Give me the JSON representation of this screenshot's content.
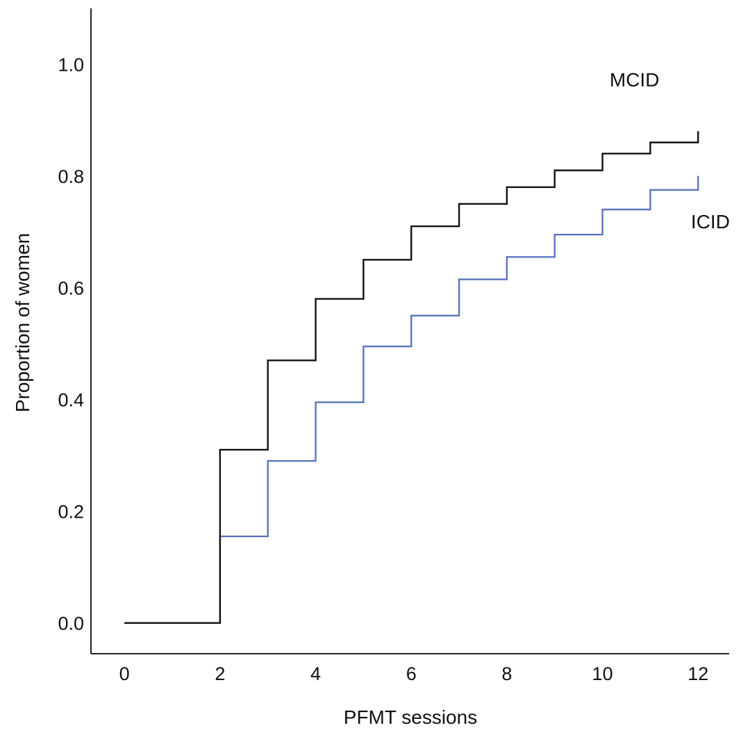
{
  "chart_data": {
    "type": "line",
    "step": true,
    "xlabel": "PFMT sessions",
    "ylabel": "Proportion of women",
    "xlim": [
      -0.7,
      12.65
    ],
    "ylim": [
      -0.055,
      1.1
    ],
    "x_ticks": [
      0,
      2,
      4,
      6,
      8,
      10,
      12
    ],
    "y_ticks": [
      0.0,
      0.2,
      0.4,
      0.6,
      0.8,
      1.0
    ],
    "x_tick_labels": [
      "0",
      "2",
      "4",
      "6",
      "8",
      "10",
      "12"
    ],
    "y_tick_labels": [
      "0.0",
      "0.2",
      "0.4",
      "0.6",
      "0.8",
      "1.0"
    ],
    "grid": false,
    "series": [
      {
        "name": "MCID",
        "color": "#111111",
        "x": [
          0,
          1,
          2,
          3,
          4,
          5,
          6,
          7,
          8,
          9,
          10,
          11,
          12
        ],
        "y": [
          0.0,
          0.0,
          0.31,
          0.47,
          0.58,
          0.65,
          0.71,
          0.75,
          0.78,
          0.81,
          0.84,
          0.86,
          0.88
        ]
      },
      {
        "name": "ICID",
        "color": "#5a75bd",
        "x": [
          0,
          1,
          2,
          3,
          4,
          5,
          6,
          7,
          8,
          9,
          10,
          11,
          12
        ],
        "y": [
          0.0,
          0.0,
          0.155,
          0.29,
          0.395,
          0.495,
          0.55,
          0.615,
          0.655,
          0.695,
          0.74,
          0.775,
          0.8
        ]
      }
    ]
  }
}
